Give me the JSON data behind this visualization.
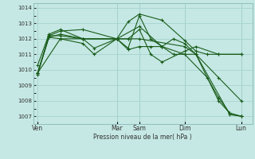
{
  "xlabel": "Pression niveau de la mer( hPa )",
  "background_color": "#c5e8e4",
  "grid_color": "#a8d4d0",
  "line_color": "#1a5c1a",
  "ylim": [
    1006.5,
    1014.3
  ],
  "yticks": [
    1007,
    1008,
    1009,
    1010,
    1011,
    1012,
    1013,
    1014
  ],
  "x_tick_labels": [
    "Ven",
    "Mar",
    "Sam",
    "Dim",
    "Lun"
  ],
  "x_tick_positions": [
    0.0,
    3.5,
    4.5,
    6.5,
    9.0
  ],
  "vline_positions": [
    3.5,
    4.5,
    6.5,
    9.0
  ],
  "series": [
    {
      "x": [
        0,
        0.5,
        1.0,
        2.0,
        3.5,
        4.0,
        4.5,
        5.5,
        6.5,
        7.0,
        7.5,
        8.0,
        9.0
      ],
      "y": [
        1009.7,
        1012.2,
        1012.5,
        1012.6,
        1012.0,
        1013.1,
        1013.6,
        1013.2,
        1011.9,
        1011.2,
        1011.0,
        1011.0,
        1011.0
      ]
    },
    {
      "x": [
        0,
        0.5,
        1.0,
        2.0,
        3.5,
        4.0,
        4.5,
        5.0,
        5.5,
        6.5,
        7.0,
        8.0,
        9.0
      ],
      "y": [
        1010.3,
        1012.3,
        1012.6,
        1012.0,
        1012.0,
        1012.0,
        1012.6,
        1011.0,
        1010.5,
        1011.2,
        1011.5,
        1011.0,
        1011.0
      ]
    },
    {
      "x": [
        0,
        0.5,
        1.0,
        2.0,
        3.5,
        4.0,
        4.5,
        5.0,
        5.5,
        6.0,
        6.5,
        7.0,
        8.0,
        9.0
      ],
      "y": [
        1009.8,
        1012.1,
        1012.3,
        1012.0,
        1012.0,
        1011.4,
        1013.5,
        1012.0,
        1011.5,
        1012.0,
        1011.7,
        1011.0,
        1009.5,
        1008.0
      ]
    },
    {
      "x": [
        0,
        0.5,
        1.0,
        2.0,
        2.5,
        3.5,
        4.0,
        4.5,
        5.0,
        5.5,
        6.0,
        6.5,
        7.0,
        8.5,
        9.0
      ],
      "y": [
        1009.8,
        1012.2,
        1012.2,
        1012.0,
        1011.4,
        1012.0,
        1011.3,
        1011.5,
        1011.5,
        1011.5,
        1011.0,
        1011.0,
        1011.0,
        1007.1,
        1007.0
      ]
    },
    {
      "x": [
        0,
        0.5,
        1.0,
        2.0,
        2.5,
        3.5,
        4.5,
        5.5,
        6.5,
        7.5,
        8.0,
        8.5,
        9.0
      ],
      "y": [
        1009.8,
        1012.1,
        1012.0,
        1011.7,
        1011.0,
        1012.0,
        1012.8,
        1011.5,
        1011.0,
        1009.5,
        1008.2,
        1007.2,
        1007.0
      ]
    },
    {
      "x": [
        0,
        1.0,
        2.0,
        3.5,
        4.5,
        6.5,
        7.0,
        8.0,
        8.5,
        9.0
      ],
      "y": [
        1009.8,
        1012.0,
        1012.0,
        1012.0,
        1012.0,
        1011.5,
        1011.0,
        1008.0,
        1007.2,
        1007.0
      ]
    }
  ]
}
